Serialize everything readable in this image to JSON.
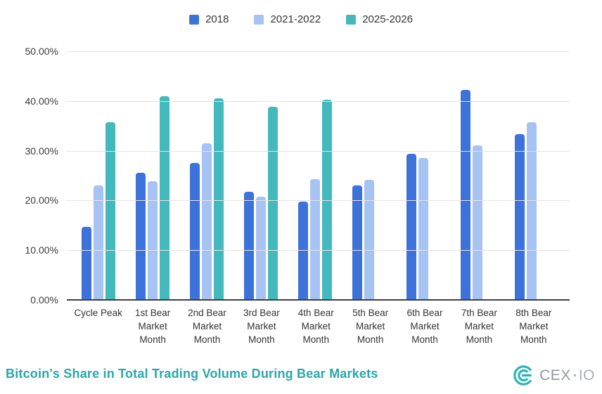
{
  "chart_data": {
    "type": "bar",
    "title": "Bitcoin's Share in Total Trading Volume During Bear Markets",
    "categories": [
      "Cycle Peak",
      "1st Bear Market Month",
      "2nd Bear Market Month",
      "3rd Bear Market Month",
      "4th Bear Market Month",
      "5th Bear Market Month",
      "6th Bear Market Month",
      "7th Bear Market Month",
      "8th Bear Market Month"
    ],
    "series": [
      {
        "name": "2018",
        "color": "#3C72D9",
        "values": [
          14.7,
          25.5,
          27.6,
          21.7,
          19.8,
          23.0,
          29.4,
          42.2,
          33.4
        ]
      },
      {
        "name": "2021-2022",
        "color": "#A6C3F3",
        "values": [
          23.0,
          23.9,
          31.5,
          20.8,
          24.3,
          24.1,
          28.6,
          31.1,
          35.7
        ]
      },
      {
        "name": "2025-2026",
        "color": "#44B9BD",
        "values": [
          35.8,
          40.9,
          40.5,
          38.8,
          40.2,
          null,
          null,
          null,
          null
        ]
      }
    ],
    "xlabel": "",
    "ylabel": "",
    "ylim": [
      0,
      50
    ],
    "ytick_labels": [
      "50.00%",
      "40.00%",
      "30.00%",
      "20.00%",
      "10.00%",
      "0.00%"
    ],
    "grid": true,
    "legend_position": "top"
  },
  "footer": {
    "logo": {
      "brand": "CEX",
      "suffix": "IO"
    }
  },
  "colors": {
    "title_teal": "#2AA7A9",
    "logo_teal": "#2CB4B5",
    "axis_line": "#3F3F3F",
    "gridline": "#E4E4E4"
  }
}
